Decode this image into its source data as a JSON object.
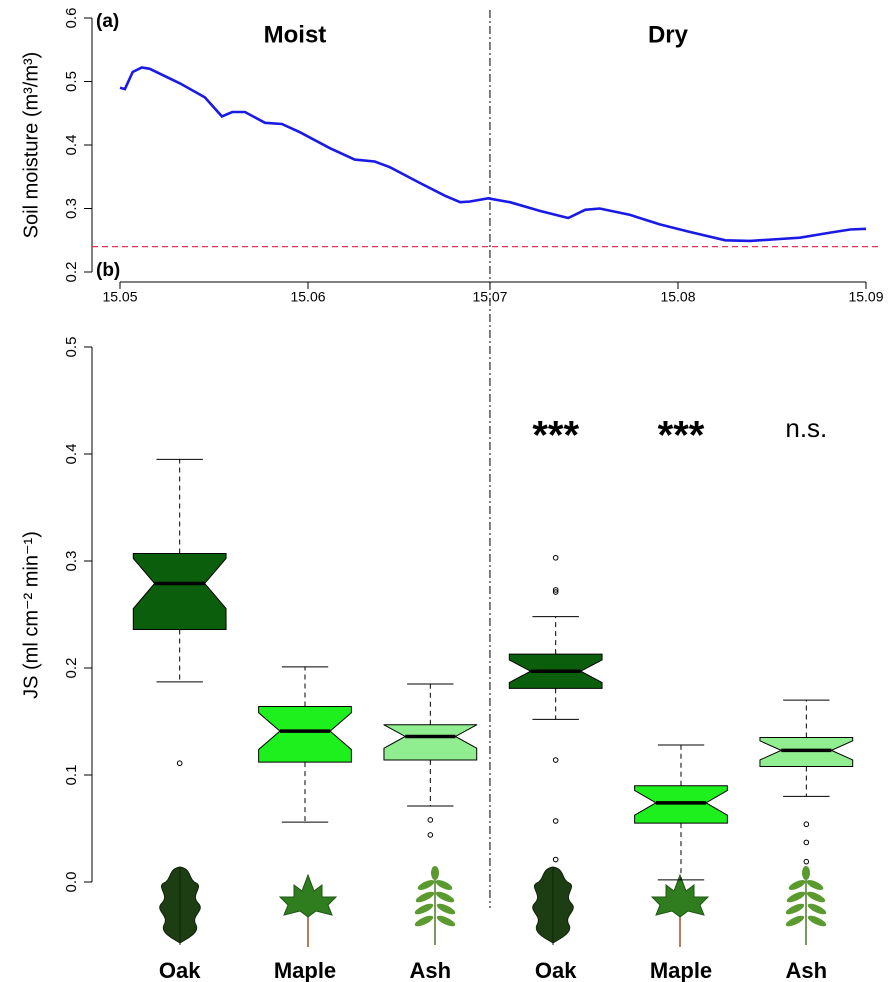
{
  "chart_data": [
    {
      "type": "line",
      "panel_label": "(a)",
      "ylabel": "Soil moisture (m³/m³)",
      "annotations": [
        "Moist",
        "Dry"
      ],
      "x": [
        0,
        0.8,
        2.1,
        3.6,
        4.9,
        9.9,
        14,
        16.8,
        18.5,
        20.6,
        23.9,
        26.7,
        29.7,
        34.6,
        38.7,
        42,
        44.5,
        49.5,
        53.6,
        56.1,
        57.7,
        60.7,
        64.3,
        69.3,
        73.9,
        76.7,
        79.1,
        84.1,
        89,
        94,
        99.8,
        103.9,
        108.8,
        112.1,
        117.1,
        120.4,
        123
      ],
      "values": [
        0.49,
        0.488,
        0.515,
        0.522,
        0.52,
        0.497,
        0.475,
        0.445,
        0.452,
        0.452,
        0.435,
        0.433,
        0.42,
        0.395,
        0.377,
        0.374,
        0.365,
        0.34,
        0.32,
        0.31,
        0.311,
        0.316,
        0.31,
        0.296,
        0.285,
        0.298,
        0.3,
        0.29,
        0.275,
        0.263,
        0.25,
        0.249,
        0.252,
        0.254,
        0.262,
        0.267,
        0.268
      ],
      "color": "#1a1ae6",
      "xlim": [
        0,
        123
      ],
      "xticks": [
        {
          "value": 0,
          "label": "15.05"
        },
        {
          "value": 31,
          "label": "15.06"
        },
        {
          "value": 61,
          "label": "15.07"
        },
        {
          "value": 92,
          "label": "15.08"
        },
        {
          "value": 123,
          "label": "15.09"
        }
      ],
      "ylim": [
        0.2,
        0.6
      ],
      "yticks": [
        0.2,
        0.3,
        0.4,
        0.5,
        0.6
      ],
      "reference_line": 0.24,
      "reference_color": "#d9365a",
      "divider_x": 61
    },
    {
      "type": "box",
      "panel_label": "(b)",
      "ylabel": "JS (ml cm⁻² min⁻¹)",
      "categories": [
        "Oak",
        "Maple",
        "Ash",
        "Oak",
        "Maple",
        "Ash"
      ],
      "group_labels": [
        null,
        null,
        null,
        "***",
        "***",
        "n.s."
      ],
      "colors": [
        "#0b5e0b",
        "#1ef01e",
        "#90ee90",
        "#0b5e0b",
        "#1ef01e",
        "#90ee90"
      ],
      "boxes": [
        {
          "whislo": 0.187,
          "q1": 0.236,
          "med": 0.279,
          "q3": 0.307,
          "whishi": 0.395,
          "fliers": [
            0.111
          ]
        },
        {
          "whislo": 0.056,
          "q1": 0.112,
          "med": 0.141,
          "q3": 0.164,
          "whishi": 0.201,
          "fliers": []
        },
        {
          "whislo": 0.071,
          "q1": 0.114,
          "med": 0.136,
          "q3": 0.147,
          "whishi": 0.185,
          "fliers": [
            0.058,
            0.044
          ]
        },
        {
          "whislo": 0.152,
          "q1": 0.181,
          "med": 0.197,
          "q3": 0.213,
          "whishi": 0.248,
          "fliers": [
            0.303,
            0.273,
            0.271,
            0.114,
            0.057,
            0.021
          ]
        },
        {
          "whislo": 0.002,
          "q1": 0.055,
          "med": 0.074,
          "q3": 0.09,
          "whishi": 0.128,
          "fliers": []
        },
        {
          "whislo": 0.08,
          "q1": 0.108,
          "med": 0.123,
          "q3": 0.135,
          "whishi": 0.17,
          "fliers": [
            0.054,
            0.037,
            0.019
          ]
        }
      ],
      "ylim": [
        0,
        0.5
      ],
      "yticks": [
        {
          "value": 0,
          "label": "0.0"
        },
        0.1,
        0.2,
        0.3,
        0.4,
        0.5
      ]
    }
  ]
}
